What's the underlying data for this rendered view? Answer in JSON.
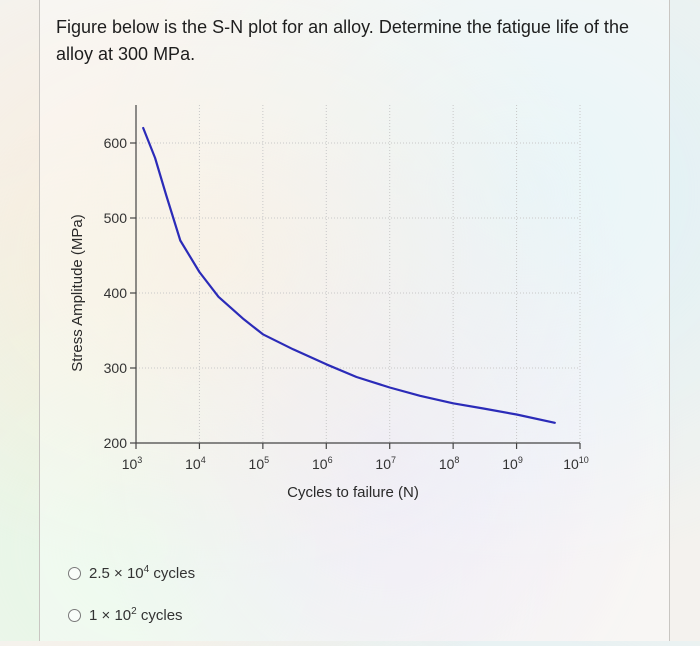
{
  "question": {
    "text": "Figure below is the S-N plot for an alloy. Determine the fatigue life of the alloy at 300 MPa."
  },
  "chart_data": {
    "type": "line",
    "title": "",
    "xlabel": "Cycles to failure (N)",
    "ylabel": "Stress Amplitude (MPa)",
    "xscale": "log",
    "xlim": [
      1000,
      10000000000
    ],
    "ylim": [
      200,
      600
    ],
    "x_ticks": [
      {
        "base": "10",
        "exp": "3",
        "value": 1000
      },
      {
        "base": "10",
        "exp": "4",
        "value": 10000
      },
      {
        "base": "10",
        "exp": "5",
        "value": 100000
      },
      {
        "base": "10",
        "exp": "6",
        "value": 1000000
      },
      {
        "base": "10",
        "exp": "7",
        "value": 10000000
      },
      {
        "base": "10",
        "exp": "8",
        "value": 100000000
      },
      {
        "base": "10",
        "exp": "9",
        "value": 1000000000
      },
      {
        "base": "10",
        "exp": "10",
        "value": 10000000000
      }
    ],
    "y_ticks": [
      "200",
      "300",
      "400",
      "500",
      "600"
    ],
    "grid": true,
    "series": [
      {
        "color": "#2b2bb8",
        "x": [
          1300,
          2000,
          3000,
          5000,
          10000,
          20000,
          50000,
          100000,
          300000,
          1000000,
          3000000,
          10000000,
          30000000,
          100000000,
          300000000,
          1000000000,
          4000000000
        ],
        "y": [
          620,
          580,
          530,
          470,
          428,
          395,
          365,
          345,
          325,
          305,
          288,
          274,
          263,
          253,
          246,
          238,
          227
        ]
      }
    ]
  },
  "options": [
    {
      "mantissa": "2.5",
      "times": "×",
      "base": "10",
      "exp": "4",
      "unit": "cycles"
    },
    {
      "mantissa": "1",
      "times": "×",
      "base": "10",
      "exp": "2",
      "unit": "cycles"
    }
  ]
}
